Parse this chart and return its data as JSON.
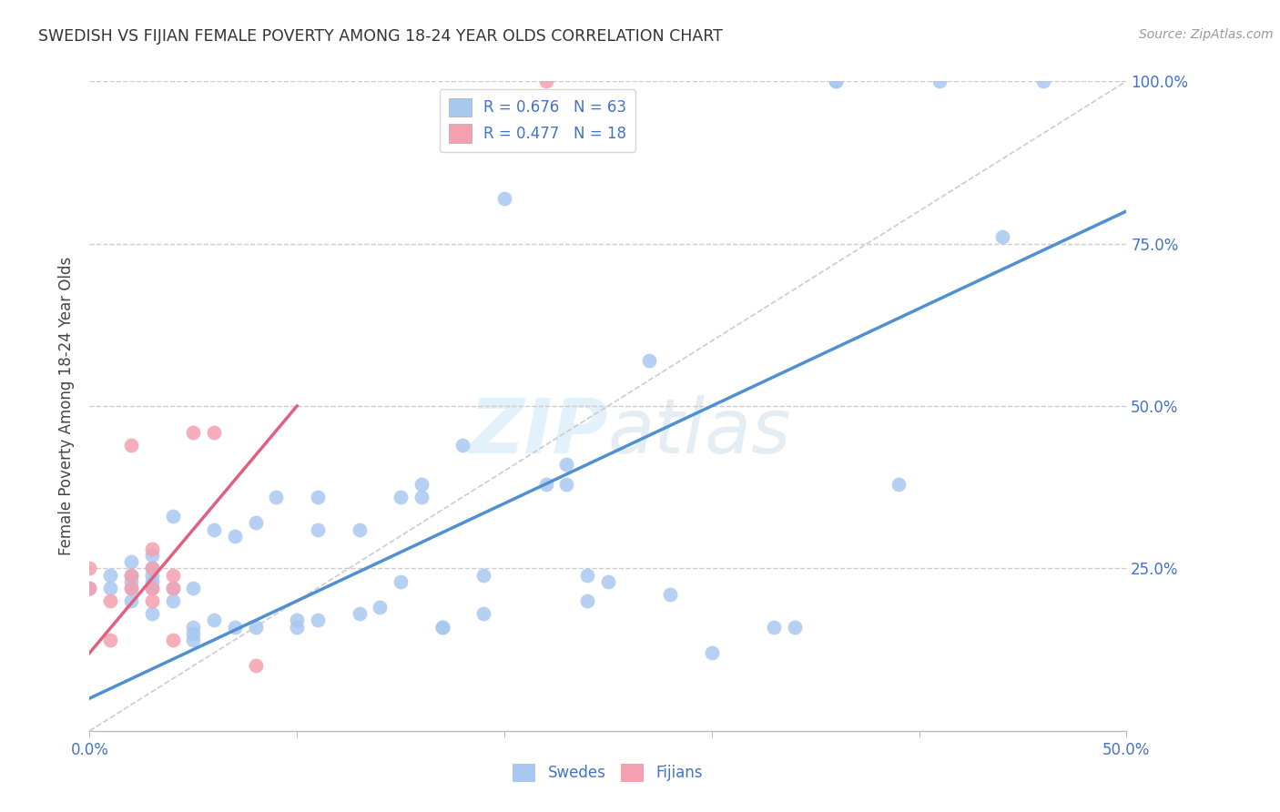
{
  "title": "SWEDISH VS FIJIAN FEMALE POVERTY AMONG 18-24 YEAR OLDS CORRELATION CHART",
  "source": "Source: ZipAtlas.com",
  "ylabel": "Female Poverty Among 18-24 Year Olds",
  "xlim": [
    0.0,
    0.5
  ],
  "ylim": [
    0.0,
    1.0
  ],
  "swedish_color": "#a8c8f0",
  "fijian_color": "#f5a0b0",
  "swedish_line_color": "#5090d0",
  "fijian_line_color": "#e06080",
  "diagonal_color": "#cccccc",
  "grid_color": "#cccccc",
  "tick_color": "#4472c4",
  "legend_text_color": "#4472c4",
  "watermark_color": "#d0e8f8",
  "swedish_R": 0.676,
  "swedish_N": 63,
  "fijian_R": 0.477,
  "fijian_N": 18,
  "swedish_x": [
    0.0,
    0.01,
    0.01,
    0.02,
    0.02,
    0.02,
    0.02,
    0.02,
    0.03,
    0.03,
    0.03,
    0.03,
    0.03,
    0.03,
    0.04,
    0.04,
    0.04,
    0.05,
    0.05,
    0.05,
    0.05,
    0.06,
    0.06,
    0.07,
    0.07,
    0.08,
    0.08,
    0.09,
    0.1,
    0.1,
    0.11,
    0.11,
    0.11,
    0.13,
    0.13,
    0.14,
    0.15,
    0.15,
    0.16,
    0.16,
    0.17,
    0.17,
    0.18,
    0.19,
    0.19,
    0.2,
    0.22,
    0.23,
    0.23,
    0.24,
    0.24,
    0.25,
    0.27,
    0.28,
    0.3,
    0.33,
    0.34,
    0.36,
    0.36,
    0.39,
    0.41,
    0.44,
    0.46
  ],
  "swedish_y": [
    0.22,
    0.22,
    0.24,
    0.2,
    0.22,
    0.23,
    0.24,
    0.26,
    0.18,
    0.22,
    0.23,
    0.24,
    0.25,
    0.27,
    0.2,
    0.22,
    0.33,
    0.14,
    0.15,
    0.22,
    0.16,
    0.17,
    0.31,
    0.16,
    0.3,
    0.16,
    0.32,
    0.36,
    0.16,
    0.17,
    0.17,
    0.31,
    0.36,
    0.18,
    0.31,
    0.19,
    0.23,
    0.36,
    0.36,
    0.38,
    0.16,
    0.16,
    0.44,
    0.18,
    0.24,
    0.82,
    0.38,
    0.38,
    0.41,
    0.2,
    0.24,
    0.23,
    0.57,
    0.21,
    0.12,
    0.16,
    0.16,
    1.0,
    1.0,
    0.38,
    1.0,
    0.76,
    1.0
  ],
  "fijian_x": [
    0.0,
    0.0,
    0.01,
    0.01,
    0.02,
    0.02,
    0.02,
    0.03,
    0.03,
    0.03,
    0.03,
    0.04,
    0.04,
    0.04,
    0.05,
    0.06,
    0.08,
    0.22
  ],
  "fijian_y": [
    0.22,
    0.25,
    0.14,
    0.2,
    0.22,
    0.24,
    0.44,
    0.2,
    0.22,
    0.25,
    0.28,
    0.14,
    0.22,
    0.24,
    0.46,
    0.46,
    0.1,
    1.0
  ],
  "swedish_line_x": [
    0.0,
    0.5
  ],
  "swedish_line_y": [
    0.05,
    0.8
  ],
  "fijian_line_x": [
    0.0,
    0.1
  ],
  "fijian_line_y": [
    0.12,
    0.5
  ],
  "diagonal_line_x": [
    0.0,
    0.5
  ],
  "diagonal_line_y": [
    0.0,
    1.0
  ]
}
